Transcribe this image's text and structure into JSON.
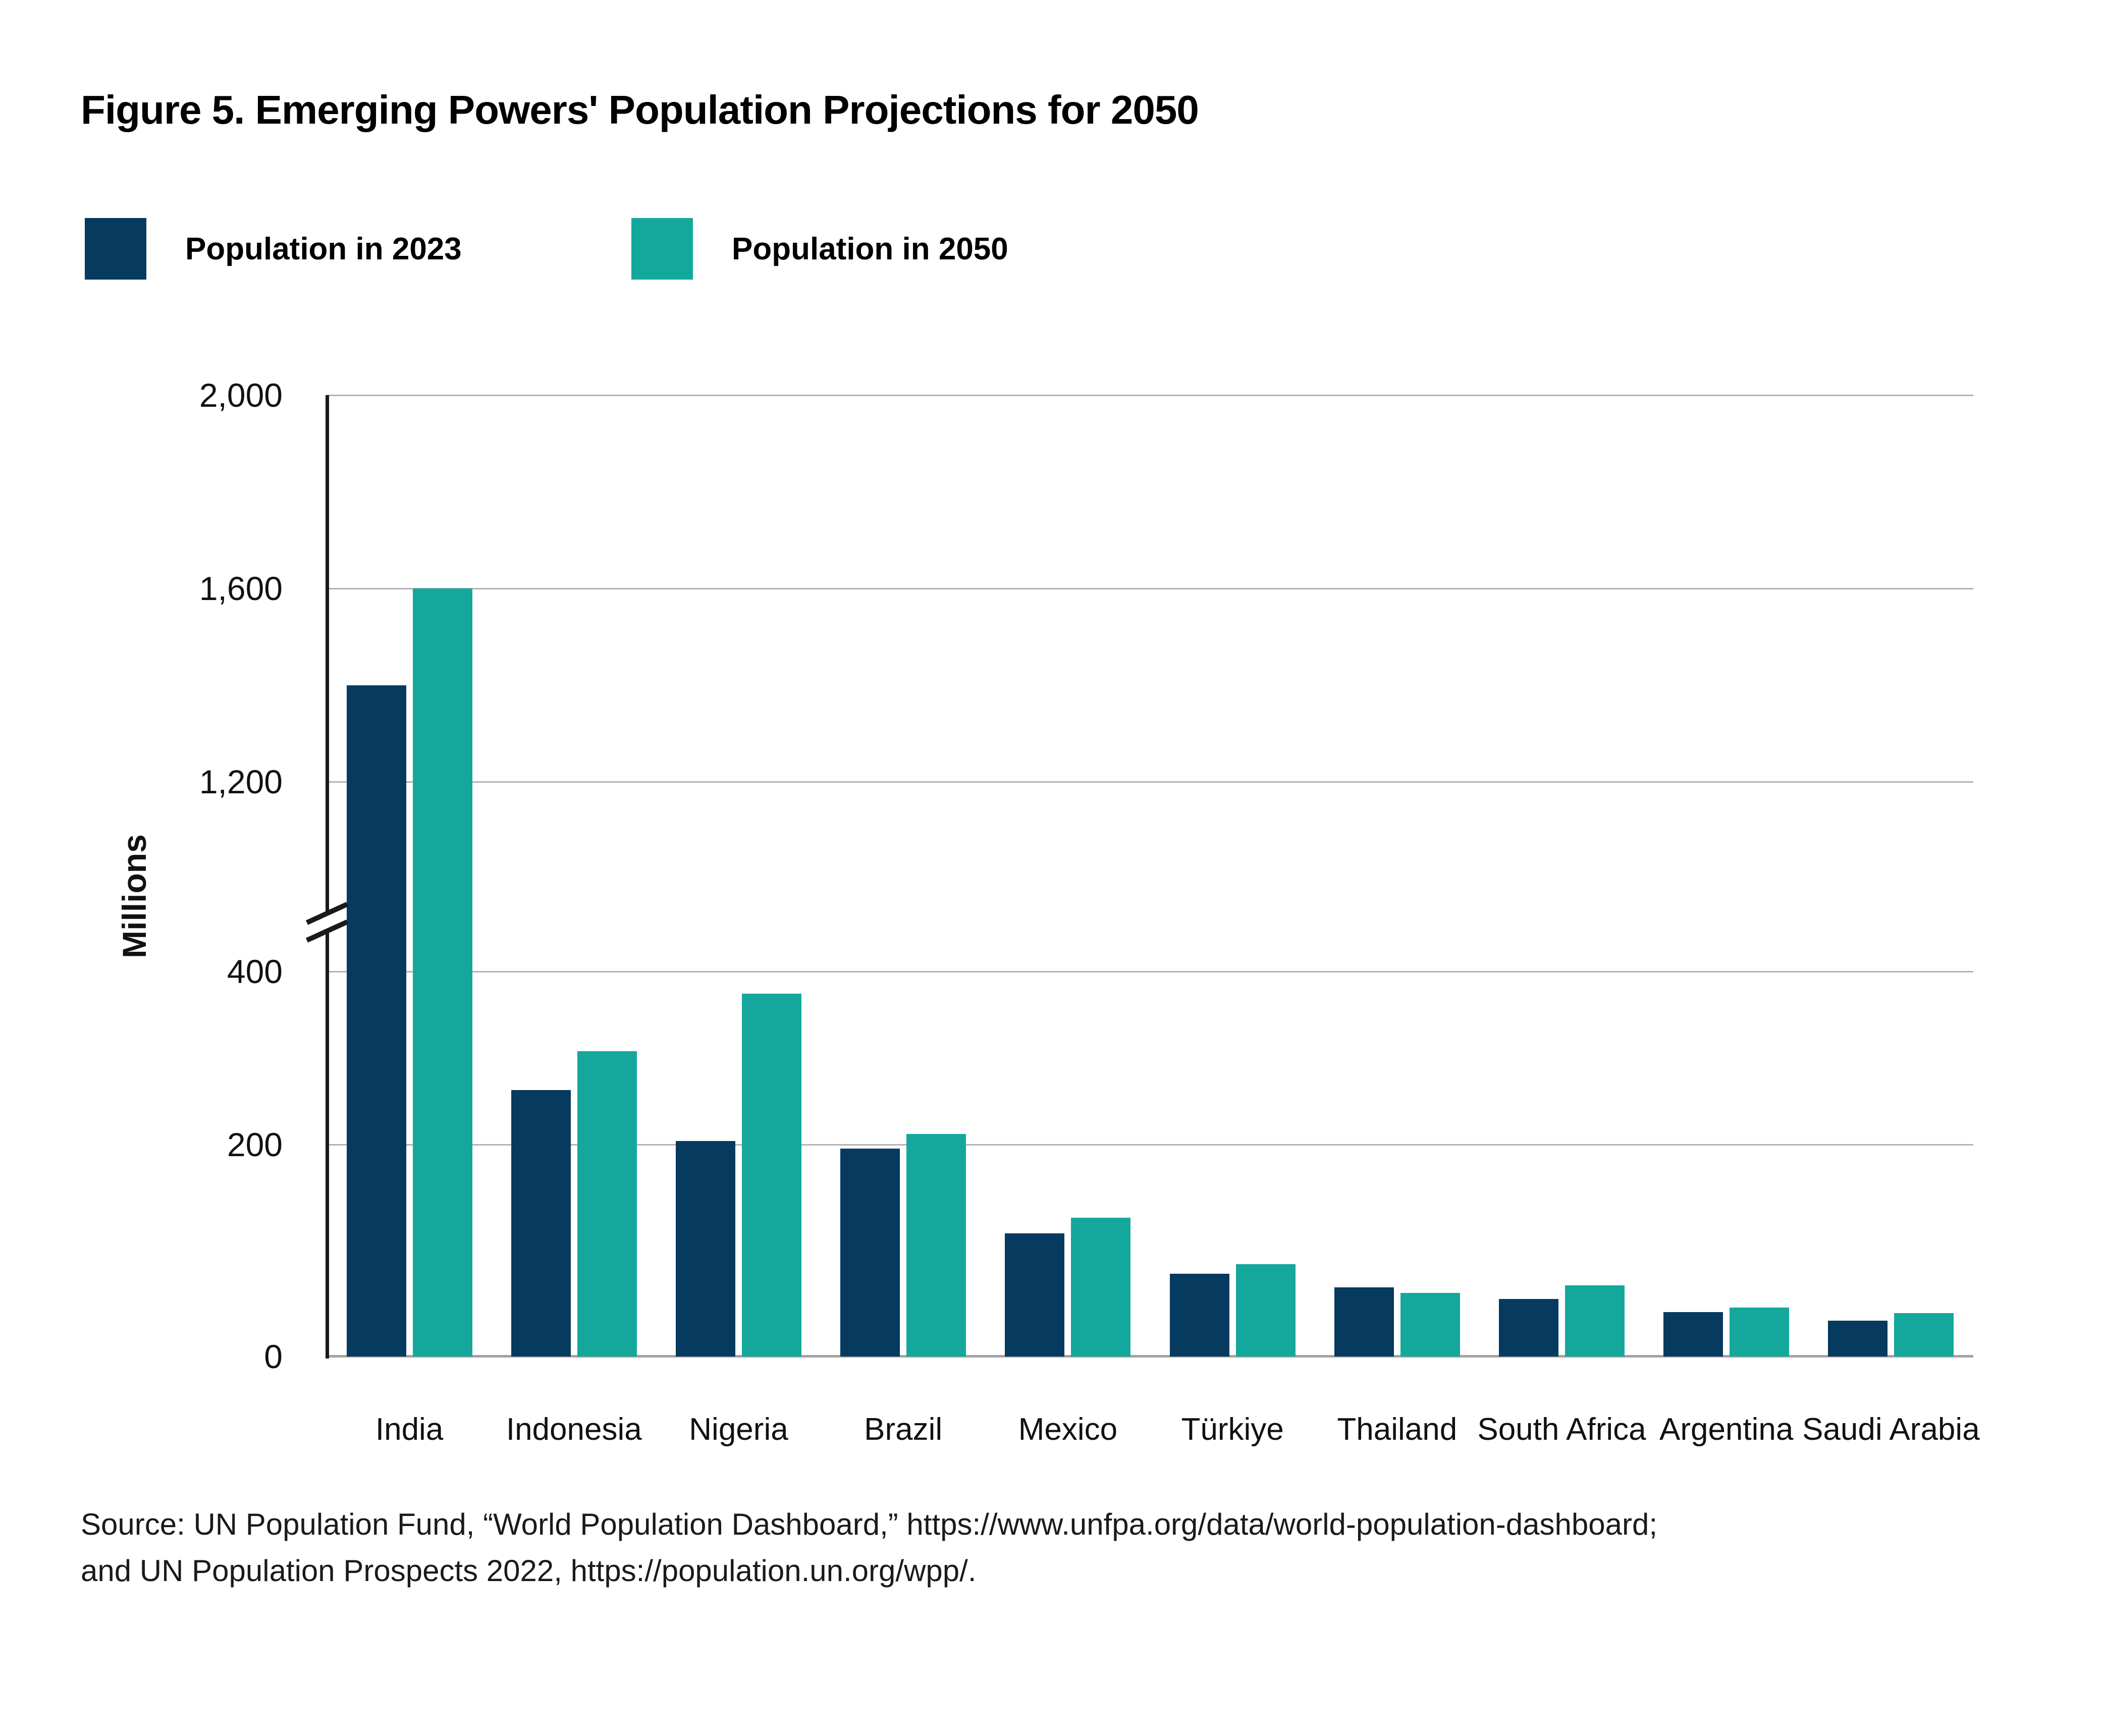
{
  "title": "Figure 5. Emerging Powers' Population Projections for 2050",
  "legend": [
    {
      "label": "Population in 2023",
      "color": "#063a5f"
    },
    {
      "label": "Population in 2050",
      "color": "#14a89d"
    }
  ],
  "y_axis": {
    "label": "Millions",
    "tick_labels": [
      "0",
      "200",
      "400",
      "1,200",
      "1,600",
      "2,000"
    ],
    "has_axis_break": true
  },
  "source": {
    "line1": "Source: UN Population Fund, “World Population Dashboard,” https://www.unfpa.org/data/world-population-dashboard;",
    "line2": "and UN Population Prospects 2022,  https://population.un.org/wpp/."
  },
  "chart_data": {
    "type": "bar",
    "title": "Figure 5. Emerging Powers' Population Projections for 2050",
    "categories": [
      "India",
      "Indonesia",
      "Nigeria",
      "Brazil",
      "Mexico",
      "Türkiye",
      "Thailand",
      "South Africa",
      "Argentina",
      "Saudi Arabia"
    ],
    "series": [
      {
        "name": "Population in 2023",
        "color": "#063a5f",
        "values": [
          1400,
          277,
          224,
          216,
          128,
          86,
          72,
          60,
          46,
          37
        ]
      },
      {
        "name": "Population in 2050",
        "color": "#14a89d",
        "values": [
          1600,
          317,
          377,
          231,
          144,
          96,
          66,
          74,
          51,
          45
        ]
      }
    ],
    "xlabel": "",
    "ylabel": "Millions",
    "units": "millions of people",
    "yticks": [
      0,
      200,
      400,
      1200,
      1600,
      2000
    ],
    "ylim": [
      0,
      2000
    ],
    "axis_break": {
      "between": [
        400,
        1200
      ]
    },
    "grid": true,
    "legend_position": "top-left",
    "gridline_color": "#b4b4b8",
    "background_color": "#ffffff"
  }
}
